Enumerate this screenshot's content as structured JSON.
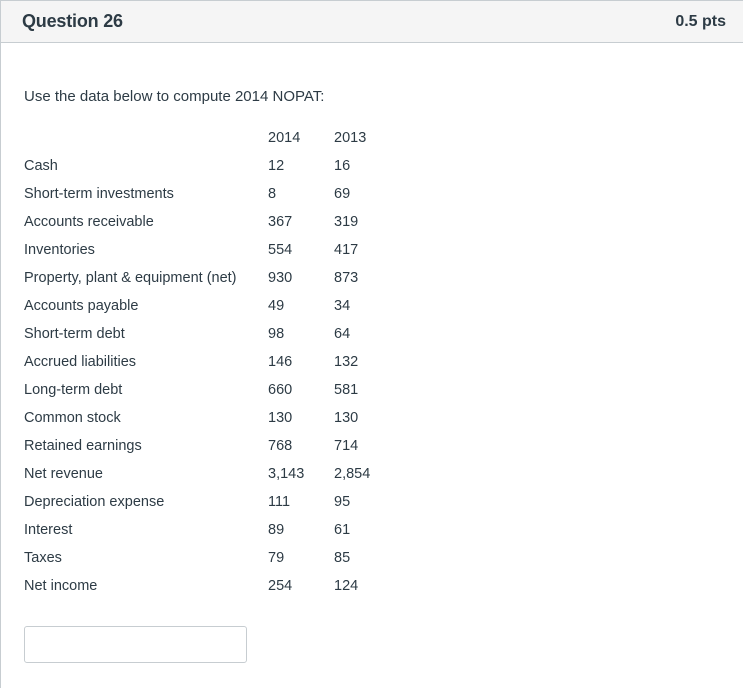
{
  "question": {
    "title": "Question 26",
    "points": "0.5 pts",
    "prompt": "Use the data below to compute 2014 NOPAT:"
  },
  "table": {
    "headers": [
      "",
      "2014",
      "2013"
    ],
    "rows": [
      {
        "label": "Cash",
        "y2014": "12",
        "y2013": "16"
      },
      {
        "label": "Short-term investments",
        "y2014": "8",
        "y2013": "69"
      },
      {
        "label": "Accounts receivable",
        "y2014": "367",
        "y2013": "319"
      },
      {
        "label": "Inventories",
        "y2014": "554",
        "y2013": "417"
      },
      {
        "label": "Property, plant & equipment (net)",
        "y2014": "930",
        "y2013": "873"
      },
      {
        "label": "Accounts payable",
        "y2014": "49",
        "y2013": "34"
      },
      {
        "label": "Short-term debt",
        "y2014": "98",
        "y2013": "64"
      },
      {
        "label": "Accrued liabilities",
        "y2014": "146",
        "y2013": "132"
      },
      {
        "label": "Long-term debt",
        "y2014": "660",
        "y2013": "581"
      },
      {
        "label": "Common stock",
        "y2014": "130",
        "y2013": "130"
      },
      {
        "label": "Retained earnings",
        "y2014": "768",
        "y2013": "714"
      },
      {
        "label": "Net revenue",
        "y2014": "3,143",
        "y2013": "2,854"
      },
      {
        "label": "Depreciation expense",
        "y2014": "111",
        "y2013": "95"
      },
      {
        "label": "Interest",
        "y2014": "89",
        "y2013": "61"
      },
      {
        "label": "Taxes",
        "y2014": "79",
        "y2013": "85"
      },
      {
        "label": "Net income",
        "y2014": "254",
        "y2013": "124"
      }
    ]
  },
  "answer": {
    "value": "",
    "placeholder": ""
  }
}
